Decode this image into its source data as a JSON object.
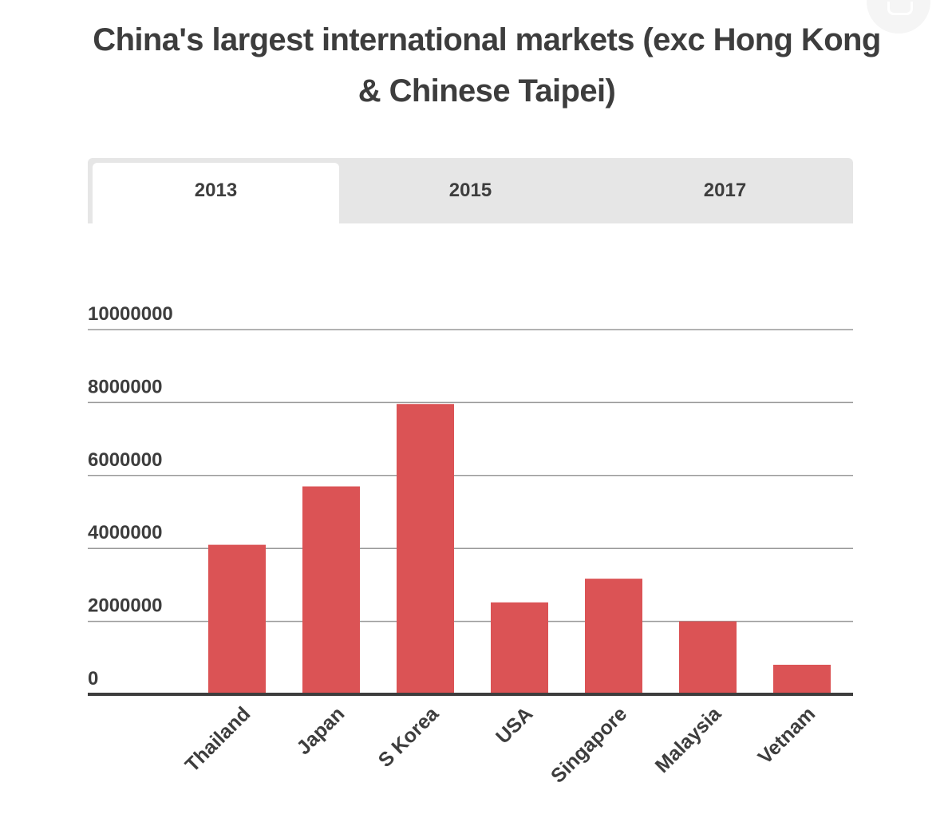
{
  "title": "China's largest international markets (exc Hong Kong & Chinese Taipei)",
  "tabs": [
    {
      "label": "2013",
      "active": true
    },
    {
      "label": "2015",
      "active": false
    },
    {
      "label": "2017",
      "active": false
    }
  ],
  "colors": {
    "bar": "#db5355",
    "grid": "#999999",
    "baseline": "#3d3d3d",
    "text": "#3d3d3d",
    "tab_bg": "#e6e6e6",
    "tab_active_bg": "#ffffff"
  },
  "chart_data": {
    "type": "bar",
    "categories": [
      "Thailand",
      "Japan",
      "S Korea",
      "USA",
      "Singapore",
      "Malaysia",
      "Vetnam"
    ],
    "values": [
      4100000,
      5700000,
      7960000,
      2520000,
      3170000,
      2000000,
      810000
    ],
    "yticks": [
      "10000000",
      "8000000",
      "6000000",
      "4000000",
      "2000000",
      "0"
    ],
    "ylim": [
      0,
      10000000
    ],
    "grid": true,
    "legend": "none",
    "xlabel": "",
    "ylabel": ""
  }
}
